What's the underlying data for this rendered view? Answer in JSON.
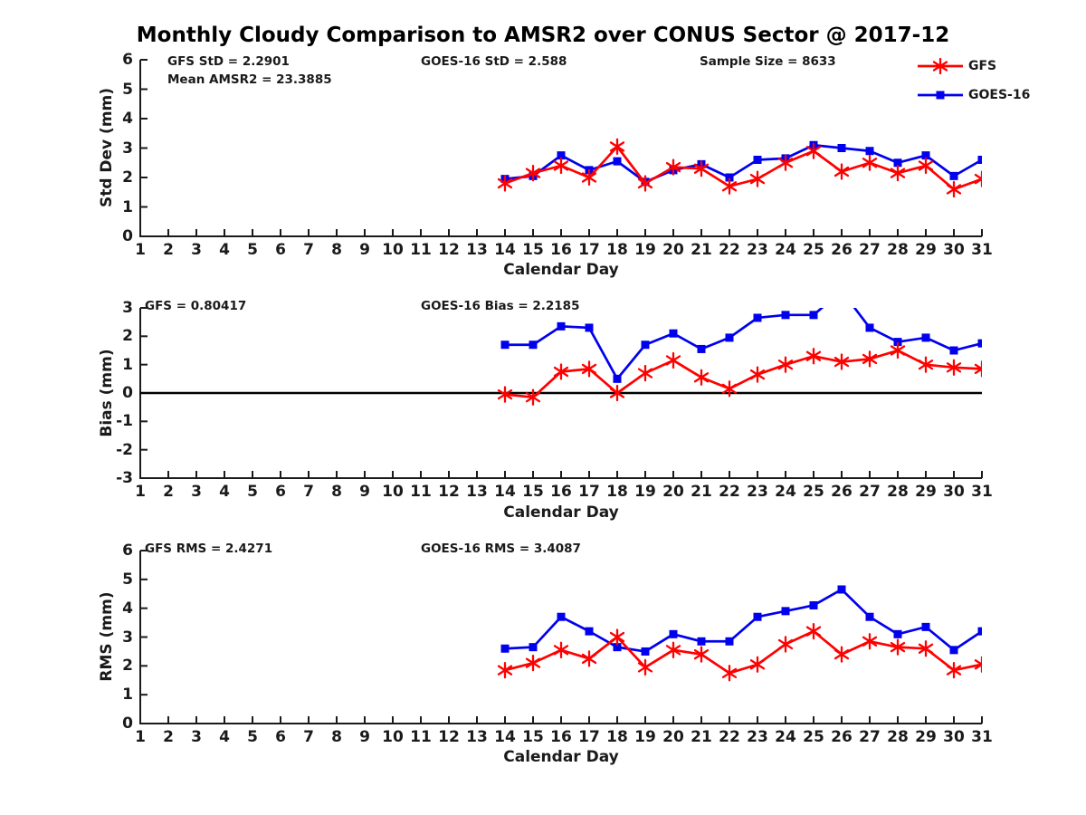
{
  "title": "Monthly Cloudy Comparison to AMSR2 over CONUS Sector @ 2017-12",
  "colors": {
    "gfs": "#ff0000",
    "goes16": "#0000ee",
    "axis": "#1a1a1a",
    "zero_line": "#000000",
    "background": "#ffffff"
  },
  "legend": {
    "entries": [
      {
        "label": "GFS",
        "color": "#ff0000",
        "marker": "asterisk"
      },
      {
        "label": "GOES-16",
        "color": "#0000ee",
        "marker": "square"
      }
    ]
  },
  "chart_data": [
    {
      "type": "line",
      "ylabel": "Std Dev (mm)",
      "xlabel": "Calendar Day",
      "xlim": [
        1,
        31
      ],
      "ylim": [
        0,
        6
      ],
      "xticks": [
        1,
        2,
        3,
        4,
        5,
        6,
        7,
        8,
        9,
        10,
        11,
        12,
        13,
        14,
        15,
        16,
        17,
        18,
        19,
        20,
        21,
        22,
        23,
        24,
        25,
        26,
        27,
        28,
        29,
        30,
        31
      ],
      "yticks": [
        0,
        1,
        2,
        3,
        4,
        5,
        6
      ],
      "grid": false,
      "zero_line": false,
      "annotations": [
        {
          "text": "GFS StD = 2.2901"
        },
        {
          "text": "Mean AMSR2 = 23.3885"
        },
        {
          "text": "GOES-16 StD = 2.588"
        },
        {
          "text": "Sample Size = 8633"
        }
      ],
      "x": [
        14,
        15,
        16,
        17,
        18,
        19,
        20,
        21,
        22,
        23,
        24,
        25,
        26,
        27,
        28,
        29,
        30,
        31
      ],
      "series": [
        {
          "name": "GFS",
          "color": "#ff0000",
          "marker": "asterisk",
          "values": [
            1.8,
            2.15,
            2.4,
            2.0,
            3.05,
            1.8,
            2.35,
            2.3,
            1.7,
            1.95,
            2.5,
            2.9,
            2.2,
            2.5,
            2.15,
            2.4,
            1.6,
            1.95
          ]
        },
        {
          "name": "GOES-16",
          "color": "#0000ee",
          "marker": "square",
          "values": [
            1.95,
            2.05,
            2.75,
            2.25,
            2.55,
            1.85,
            2.25,
            2.45,
            2.0,
            2.6,
            2.65,
            3.1,
            3.0,
            2.9,
            2.5,
            2.75,
            2.05,
            2.6
          ]
        }
      ]
    },
    {
      "type": "line",
      "ylabel": "Bias (mm)",
      "xlabel": "Calendar Day",
      "xlim": [
        1,
        31
      ],
      "ylim": [
        -3,
        3
      ],
      "xticks": [
        1,
        2,
        3,
        4,
        5,
        6,
        7,
        8,
        9,
        10,
        11,
        12,
        13,
        14,
        15,
        16,
        17,
        18,
        19,
        20,
        21,
        22,
        23,
        24,
        25,
        26,
        27,
        28,
        29,
        30,
        31
      ],
      "yticks": [
        -3,
        -2,
        -1,
        0,
        1,
        2,
        3
      ],
      "grid": false,
      "zero_line": true,
      "annotations": [
        {
          "text": "GFS = 0.80417"
        },
        {
          "text": "GOES-16 Bias = 2.2185"
        }
      ],
      "x": [
        14,
        15,
        16,
        17,
        18,
        19,
        20,
        21,
        22,
        23,
        24,
        25,
        26,
        27,
        28,
        29,
        30,
        31
      ],
      "series": [
        {
          "name": "GFS",
          "color": "#ff0000",
          "marker": "asterisk",
          "values": [
            -0.05,
            -0.15,
            0.75,
            0.85,
            0.0,
            0.7,
            1.15,
            0.55,
            0.15,
            0.65,
            1.0,
            1.3,
            1.1,
            1.2,
            1.5,
            1.0,
            0.9,
            0.85
          ]
        },
        {
          "name": "GOES-16",
          "color": "#0000ee",
          "marker": "square",
          "values": [
            1.7,
            1.7,
            2.35,
            2.3,
            0.5,
            1.7,
            2.1,
            1.55,
            1.95,
            2.65,
            2.75,
            2.75,
            3.6,
            2.3,
            1.8,
            1.95,
            1.5,
            1.75
          ]
        }
      ]
    },
    {
      "type": "line",
      "ylabel": "RMS (mm)",
      "xlabel": "Calendar Day",
      "xlim": [
        1,
        31
      ],
      "ylim": [
        0,
        6
      ],
      "xticks": [
        1,
        2,
        3,
        4,
        5,
        6,
        7,
        8,
        9,
        10,
        11,
        12,
        13,
        14,
        15,
        16,
        17,
        18,
        19,
        20,
        21,
        22,
        23,
        24,
        25,
        26,
        27,
        28,
        29,
        30,
        31
      ],
      "yticks": [
        0,
        1,
        2,
        3,
        4,
        5,
        6
      ],
      "grid": false,
      "zero_line": false,
      "annotations": [
        {
          "text": "GFS RMS = 2.4271"
        },
        {
          "text": "GOES-16 RMS = 3.4087"
        }
      ],
      "x": [
        14,
        15,
        16,
        17,
        18,
        19,
        20,
        21,
        22,
        23,
        24,
        25,
        26,
        27,
        28,
        29,
        30,
        31
      ],
      "series": [
        {
          "name": "GFS",
          "color": "#ff0000",
          "marker": "asterisk",
          "values": [
            1.85,
            2.1,
            2.55,
            2.25,
            3.0,
            1.95,
            2.55,
            2.4,
            1.75,
            2.05,
            2.75,
            3.2,
            2.4,
            2.85,
            2.65,
            2.6,
            1.85,
            2.05
          ]
        },
        {
          "name": "GOES-16",
          "color": "#0000ee",
          "marker": "square",
          "values": [
            2.6,
            2.65,
            3.7,
            3.2,
            2.65,
            2.5,
            3.1,
            2.85,
            2.85,
            3.7,
            3.9,
            4.1,
            4.65,
            3.7,
            3.1,
            3.35,
            2.55,
            3.2
          ]
        }
      ]
    }
  ]
}
